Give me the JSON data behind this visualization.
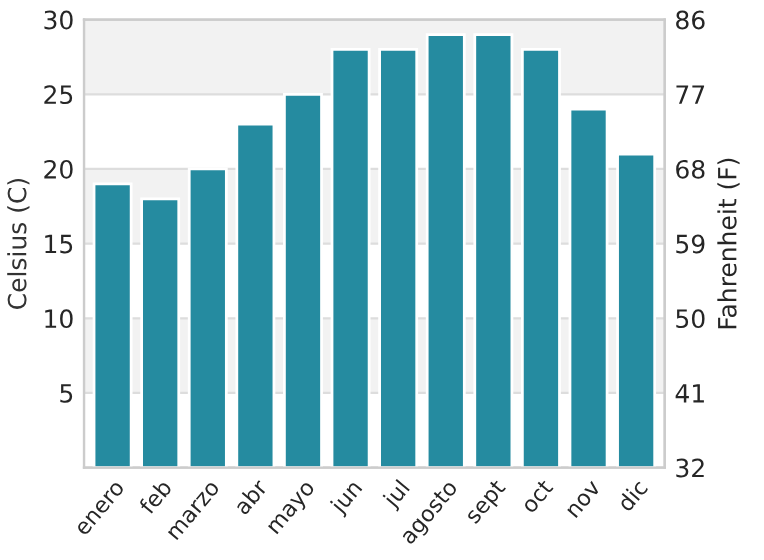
{
  "chart_data": {
    "type": "bar",
    "ylabel": "Celsius (C)",
    "y2label": "Fahrenheit (F)",
    "categories": [
      "enero",
      "feb",
      "marzo",
      "abr",
      "mayo",
      "jun",
      "jul",
      "agosto",
      "sept",
      "oct",
      "nov",
      "dic"
    ],
    "values": [
      19,
      18,
      20,
      23,
      25,
      28,
      28,
      29,
      29,
      28,
      24,
      21
    ],
    "color": "#258ba0",
    "ylim": [
      0,
      30
    ],
    "yticks": [
      5,
      10,
      15,
      20,
      25,
      30
    ],
    "y2lim": [
      32,
      86
    ],
    "y2ticks": [
      32,
      41,
      50,
      59,
      68,
      77,
      86
    ],
    "grid": "y",
    "bands": [
      {
        "axis": "y",
        "from": 5,
        "to": 10,
        "color": "#f2f2f2"
      },
      {
        "axis": "y",
        "from": 15,
        "to": 20,
        "color": "#f2f2f2"
      },
      {
        "axis": "y",
        "from": 25,
        "to": 30,
        "color": "#f2f2f2"
      }
    ]
  }
}
